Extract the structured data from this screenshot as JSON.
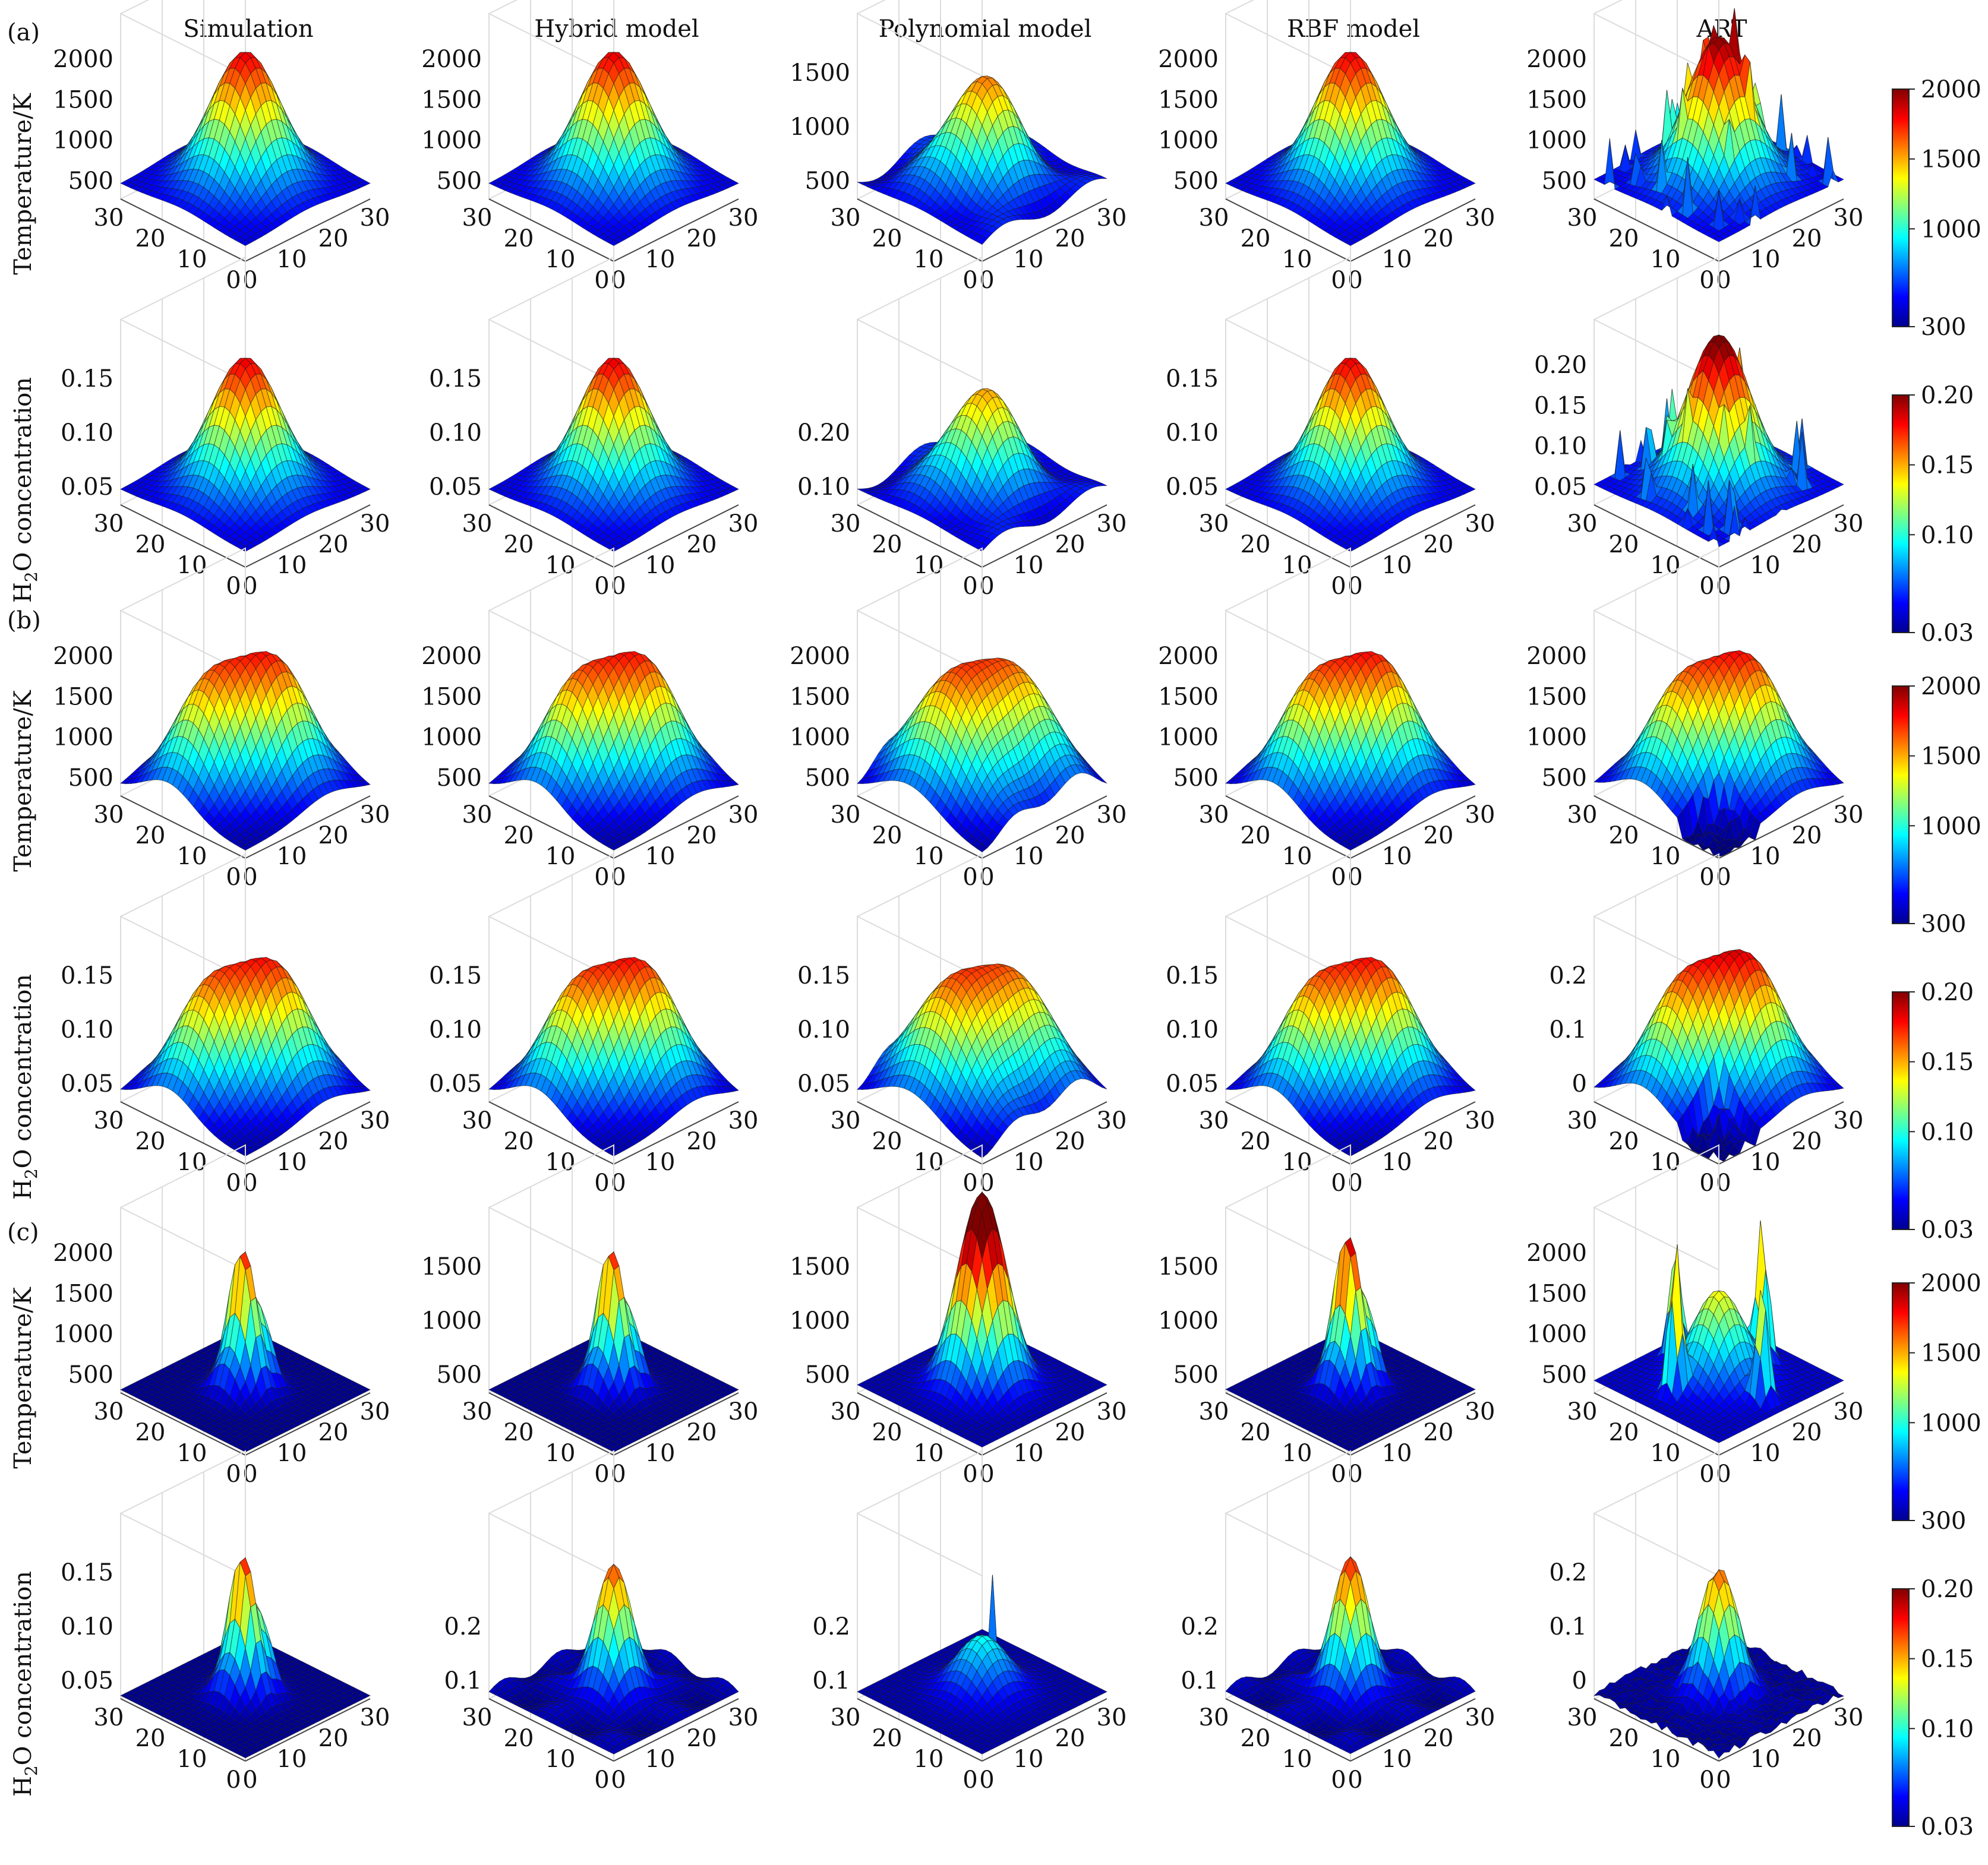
{
  "figure": {
    "columns": [
      "Simulation",
      "Hybrid model",
      "Polynomial model",
      "RBF model",
      "ART"
    ],
    "panel_labels": [
      "(a)",
      "(b)",
      "(c)"
    ],
    "row_labels": {
      "temperature": "Temperature/K",
      "h2o_prefix": "H",
      "h2o_sub": "2",
      "h2o_suffix": "O concentration"
    }
  },
  "chart_data": {
    "type": "surface",
    "colormap": "jet",
    "grid": true,
    "x": {
      "range": [
        0,
        30
      ],
      "ticks": [
        "0",
        "10",
        "20",
        "30"
      ]
    },
    "y": {
      "range": [
        0,
        30
      ],
      "ticks": [
        "0",
        "10",
        "20",
        "30"
      ]
    },
    "colorbars": {
      "temperature": {
        "range": [
          300,
          2000
        ],
        "ticks": [
          "300",
          "1000",
          "1500",
          "2000"
        ]
      },
      "h2o": {
        "range": [
          0.03,
          0.2
        ],
        "ticks": [
          "0.03",
          "0.10",
          "0.15",
          "0.20"
        ]
      }
    },
    "rows": [
      {
        "panel": "(a)",
        "quantity": "temperature",
        "plots": [
          {
            "column": "Simulation",
            "shape": "single",
            "amplitude": 1.0,
            "zticks": [
              "500",
              "1000",
              "1500",
              "2000"
            ]
          },
          {
            "column": "Hybrid model",
            "shape": "single",
            "amplitude": 1.0,
            "zticks": [
              "500",
              "1000",
              "1500",
              "2000"
            ]
          },
          {
            "column": "Polynomial model",
            "shape": "single-wavy",
            "amplitude": 0.9,
            "zticks": [
              "500",
              "1000",
              "1500"
            ]
          },
          {
            "column": "RBF model",
            "shape": "single",
            "amplitude": 1.0,
            "zticks": [
              "500",
              "1000",
              "1500",
              "2000"
            ]
          },
          {
            "column": "ART",
            "shape": "single-noisy",
            "amplitude": 1.05,
            "zticks": [
              "500",
              "1000",
              "1500",
              "2000"
            ]
          }
        ]
      },
      {
        "panel": "",
        "quantity": "h2o",
        "plots": [
          {
            "column": "Simulation",
            "shape": "single",
            "amplitude": 1.0,
            "zticks": [
              "0.05",
              "0.10",
              "0.15"
            ]
          },
          {
            "column": "Hybrid model",
            "shape": "single",
            "amplitude": 1.0,
            "zticks": [
              "0.05",
              "0.10",
              "0.15"
            ]
          },
          {
            "column": "Polynomial model",
            "shape": "single-wavy",
            "amplitude": 0.85,
            "zticks": [
              "0.10",
              "0.20"
            ]
          },
          {
            "column": "RBF model",
            "shape": "single",
            "amplitude": 1.0,
            "zticks": [
              "0.05",
              "0.10",
              "0.15"
            ]
          },
          {
            "column": "ART",
            "shape": "single-noisy",
            "amplitude": 1.1,
            "zticks": [
              "0.05",
              "0.10",
              "0.15",
              "0.20"
            ]
          }
        ]
      },
      {
        "panel": "(b)",
        "quantity": "temperature",
        "plots": [
          {
            "column": "Simulation",
            "shape": "double",
            "amplitude": 1.0,
            "zticks": [
              "500",
              "1000",
              "1500",
              "2000"
            ]
          },
          {
            "column": "Hybrid model",
            "shape": "double",
            "amplitude": 1.0,
            "zticks": [
              "500",
              "1000",
              "1500",
              "2000"
            ]
          },
          {
            "column": "Polynomial model",
            "shape": "double-flat",
            "amplitude": 0.95,
            "zticks": [
              "500",
              "1000",
              "1500",
              "2000"
            ]
          },
          {
            "column": "RBF model",
            "shape": "double",
            "amplitude": 1.0,
            "zticks": [
              "500",
              "1000",
              "1500",
              "2000"
            ]
          },
          {
            "column": "ART",
            "shape": "double-noisy",
            "amplitude": 1.0,
            "zticks": [
              "500",
              "1000",
              "1500",
              "2000"
            ]
          }
        ]
      },
      {
        "panel": "",
        "quantity": "h2o",
        "plots": [
          {
            "column": "Simulation",
            "shape": "double",
            "amplitude": 1.0,
            "zticks": [
              "0.05",
              "0.10",
              "0.15"
            ]
          },
          {
            "column": "Hybrid model",
            "shape": "double",
            "amplitude": 1.0,
            "zticks": [
              "0.05",
              "0.10",
              "0.15"
            ]
          },
          {
            "column": "Polynomial model",
            "shape": "double-flat",
            "amplitude": 0.95,
            "zticks": [
              "0.05",
              "0.10",
              "0.15"
            ]
          },
          {
            "column": "RBF model",
            "shape": "double",
            "amplitude": 1.0,
            "zticks": [
              "0.05",
              "0.10",
              "0.15"
            ]
          },
          {
            "column": "ART",
            "shape": "double-noisy",
            "amplitude": 1.05,
            "zticks": [
              "0",
              "0.1",
              "0.2"
            ]
          }
        ]
      },
      {
        "panel": "(c)",
        "quantity": "temperature",
        "plots": [
          {
            "column": "Simulation",
            "shape": "narrow",
            "amplitude": 1.0,
            "zticks": [
              "500",
              "1000",
              "1500",
              "2000"
            ]
          },
          {
            "column": "Hybrid model",
            "shape": "narrow",
            "amplitude": 1.0,
            "zticks": [
              "500",
              "1000",
              "1500"
            ]
          },
          {
            "column": "Polynomial model",
            "shape": "narrow-tall",
            "amplitude": 1.3,
            "zticks": [
              "500",
              "1000",
              "1500"
            ]
          },
          {
            "column": "RBF model",
            "shape": "narrow",
            "amplitude": 1.1,
            "zticks": [
              "500",
              "1000",
              "1500"
            ]
          },
          {
            "column": "ART",
            "shape": "spiky",
            "amplitude": 1.0,
            "zticks": [
              "500",
              "1000",
              "1500",
              "2000"
            ]
          }
        ]
      },
      {
        "panel": "",
        "quantity": "h2o",
        "plots": [
          {
            "column": "Simulation",
            "shape": "narrow",
            "amplitude": 1.0,
            "zticks": [
              "0.05",
              "0.10",
              "0.15"
            ]
          },
          {
            "column": "Hybrid model",
            "shape": "narrow-wavy",
            "amplitude": 0.9,
            "zticks": [
              "0.1",
              "0.2"
            ]
          },
          {
            "column": "Polynomial model",
            "shape": "low-spike",
            "amplitude": 0.45,
            "zticks": [
              "0.1",
              "0.2"
            ]
          },
          {
            "column": "RBF model",
            "shape": "narrow-wavy",
            "amplitude": 0.95,
            "zticks": [
              "0.1",
              "0.2"
            ]
          },
          {
            "column": "ART",
            "shape": "narrow-noisy",
            "amplitude": 0.9,
            "zticks": [
              "0",
              "0.1",
              "0.2"
            ]
          }
        ]
      }
    ]
  }
}
